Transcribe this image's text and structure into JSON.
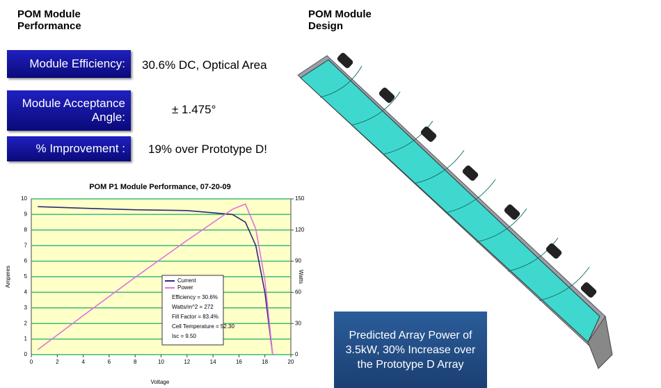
{
  "left_header": "POM Module Performance",
  "right_header": "POM Module Design",
  "metrics": [
    {
      "label": "Module Efficiency:",
      "value": "30.6% DC, Optical Area"
    },
    {
      "label": "Module Acceptance Angle:",
      "value": "± 1.475°"
    },
    {
      "label": "% Improvement :",
      "value": "19% over Prototype D!"
    }
  ],
  "callout": "Predicted Array Power of 3.5kW, 30% Increase over the Prototype D Array",
  "chart_data": {
    "type": "line",
    "title": "POM P1 Module Performance, 07-20-09",
    "x_label": "Voltage",
    "y_label": "Amperes",
    "y2_label": "Watts",
    "x": [
      0.5,
      4,
      8,
      12,
      15.5,
      16.5,
      17.3,
      18,
      18.6
    ],
    "xlim": [
      0,
      20
    ],
    "xticks": [
      0,
      2,
      4,
      6,
      8,
      10,
      12,
      14,
      16,
      18,
      20
    ],
    "ylim": [
      0,
      10
    ],
    "yticks": [
      0,
      1,
      2,
      3,
      4,
      5,
      6,
      7,
      8,
      9,
      10
    ],
    "y2lim": [
      0,
      150
    ],
    "y2ticks": [
      0,
      30,
      60,
      90,
      120,
      150
    ],
    "grid": true,
    "background": "#ffffc8",
    "series": [
      {
        "name": "Current",
        "color": "#2a2a78",
        "values": [
          9.5,
          9.4,
          9.3,
          9.25,
          9.0,
          8.5,
          7.0,
          4.0,
          0
        ]
      },
      {
        "name": "Power",
        "color": "#e070e0",
        "axis": "y2",
        "values": [
          4.8,
          37.6,
          74.4,
          110,
          140,
          145,
          121,
          72,
          0
        ]
      }
    ],
    "annotations": [
      "Efficiency = 30.6%",
      "Watts/m^2 = 272",
      "Fill Factor = 83.4%",
      "Cell Temperature = 52.30",
      "Isc = 9.50"
    ]
  }
}
